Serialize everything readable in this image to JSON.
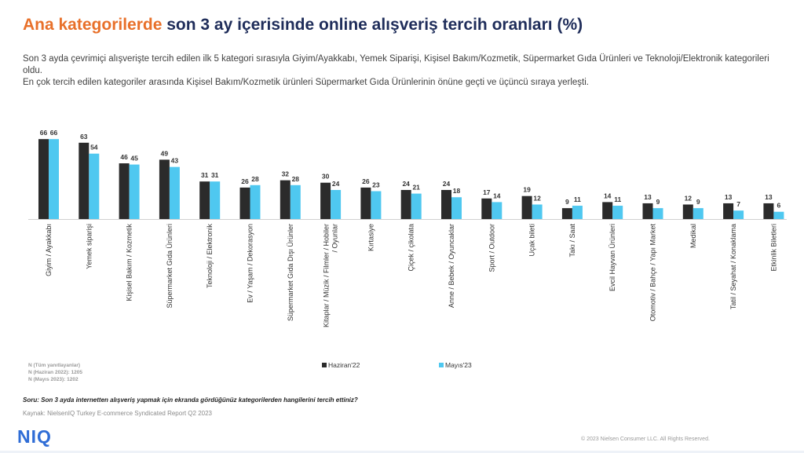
{
  "header": {
    "title_accent": "Ana kategorilerde",
    "title_rest": " son 3 ay içerisinde online alışveriş tercih oranları (%)"
  },
  "description": {
    "line1": "Son 3 ayda çevrimiçi alışverişte tercih edilen ilk 5 kategori sırasıyla Giyim/Ayakkabı, Yemek Siparişi, Kişisel Bakım/Kozmetik, Süpermarket Gıda Ürünleri ve Teknoloji/Elektronik kategorileri oldu.",
    "line2": "En çok tercih edilen kategoriler arasında Kişisel Bakım/Kozmetik ürünleri Süpermarket Gıda Ürünlerinin önüne geçti ve üçüncü sıraya yerleşti."
  },
  "chart_data": {
    "type": "bar",
    "categories": [
      "Giyim / Ayakkabı",
      "Yemek siparişi",
      "Kişisel Bakım / Kozmetik",
      "Süpermarket Gıda Ürünleri",
      "Teknoloji / Elektronik",
      "Ev / Yaşam / Dekorasyon",
      "Süpermarket Gıda Dışı Ürünler",
      "Kitaplar / Müzik / Filmler / Hobiler / Oyunlar",
      "Kırtasiye",
      "Çiçek / çikolata",
      "Anne / Bebek / Oyuncaklar",
      "Sport / Outdoor",
      "Uçak bileti",
      "Takı / Saat",
      "Evcil Hayvan Ürünleri",
      "Otomotiv / Bahçe / Yapı Market",
      "Medikal",
      "Tatil / Seyahat / Konaklama",
      "Etkinlik Biletleri"
    ],
    "category_lines": [
      [
        "Giyim / Ayakkabı"
      ],
      [
        "Yemek siparişi"
      ],
      [
        "Kişisel Bakım / Kozmetik"
      ],
      [
        "Süpermarket Gıda Ürünleri"
      ],
      [
        "Teknoloji / Elektronik"
      ],
      [
        "Ev / Yaşam / Dekorasyon"
      ],
      [
        "Süpermarket Gıda Dışı Ürünler"
      ],
      [
        "Kitaplar / Müzik / Filmler / Hobiler",
        "/ Oyunlar"
      ],
      [
        "Kırtasiye"
      ],
      [
        "Çiçek / çikolata"
      ],
      [
        "Anne / Bebek / Oyuncaklar"
      ],
      [
        "Sport / Outdoor"
      ],
      [
        "Uçak bileti"
      ],
      [
        "Takı / Saat"
      ],
      [
        "Evcil Hayvan Ürünleri"
      ],
      [
        "Otomotiv / Bahçe / Yapı Market"
      ],
      [
        "Medikal"
      ],
      [
        "Tatil / Seyahat / Konaklama"
      ],
      [
        "Etkinlik Biletleri"
      ]
    ],
    "series": [
      {
        "name": "Haziran'22",
        "color": "#2b2b2b",
        "values": [
          66,
          63,
          46,
          49,
          31,
          26,
          32,
          30,
          26,
          24,
          24,
          17,
          19,
          9,
          14,
          13,
          12,
          13,
          13
        ]
      },
      {
        "name": "Mayıs'23",
        "color": "#4fc8f0",
        "values": [
          66,
          54,
          45,
          43,
          31,
          28,
          28,
          24,
          23,
          21,
          18,
          14,
          12,
          11,
          11,
          9,
          9,
          7,
          6
        ]
      }
    ],
    "ylim": [
      0,
      70
    ],
    "grid": false,
    "legend": "bottom-center"
  },
  "notes": {
    "n_all": "N (Tüm yanıtlayanlar)",
    "n_2022": "N (Haziran 2022): 1205",
    "n_2023": "N (Mayıs 2023): 1202"
  },
  "footer": {
    "question": "Soru: Son 3 ayda internetten alışveriş yapmak için ekranda gördüğünüz kategorilerden hangilerini tercih ettiniz?",
    "source": "Kaynak: NielsenIQ Turkey E-commerce Syndicated Report Q2 2023",
    "logo": "NIQ",
    "copyright": "© 2023 Nielsen Consumer LLC. All Rights Reserved."
  }
}
